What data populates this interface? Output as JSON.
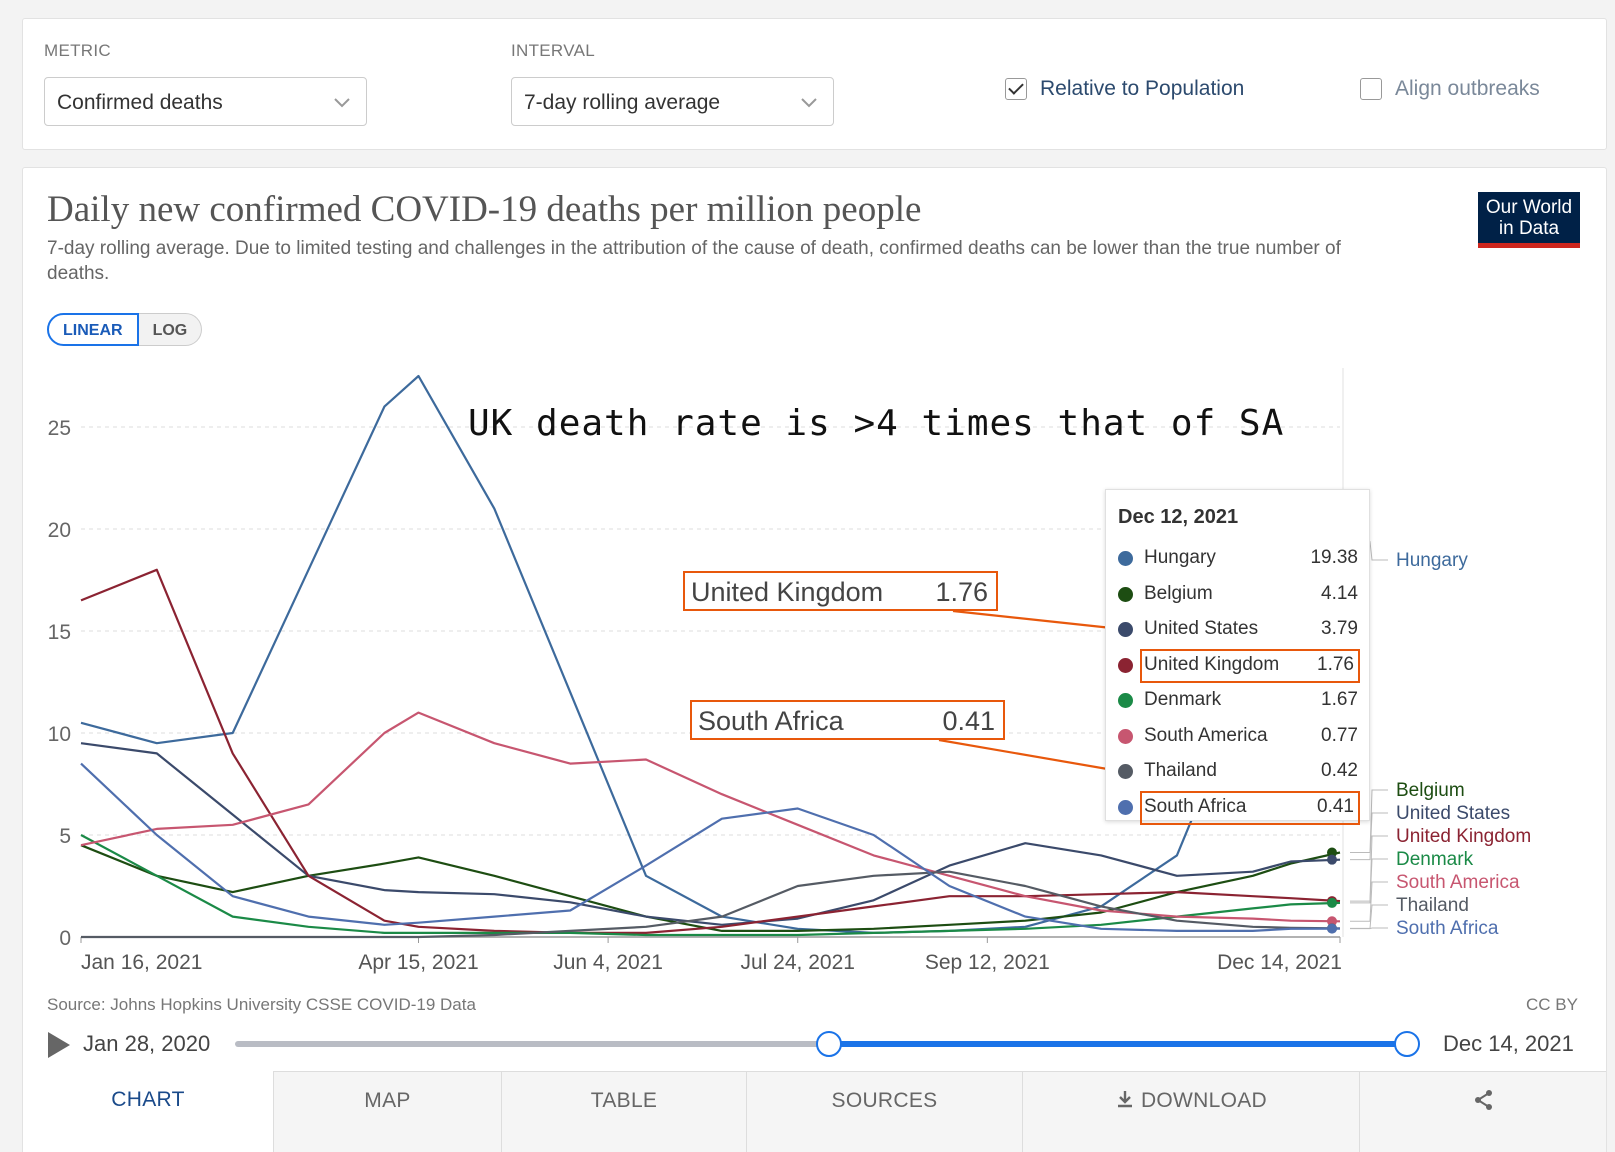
{
  "controls": {
    "metric_label": "METRIC",
    "metric_value": "Confirmed deaths",
    "interval_label": "INTERVAL",
    "interval_value": "7-day rolling average",
    "relative_label": "Relative to Population",
    "relative_checked": true,
    "align_label": "Align outbreaks",
    "align_checked": false
  },
  "header": {
    "title": "Daily new confirmed COVID-19 deaths per million people",
    "subtitle": "7-day rolling average. Due to limited testing and challenges in the attribution of the cause of death, confirmed deaths can be lower than the true number of deaths.",
    "logo_line1": "Our World",
    "logo_line2": "in Data"
  },
  "scale": {
    "linear": "LINEAR",
    "log": "LOG",
    "active": "linear"
  },
  "annotation": "UK death rate is >4 times that of SA",
  "chart_data": {
    "type": "line",
    "title": "Daily new confirmed COVID-19 deaths per million people",
    "xlabel": "",
    "ylabel": "",
    "ylim": [
      0,
      27
    ],
    "yticks": [
      0,
      5,
      10,
      15,
      20,
      25
    ],
    "xlim": [
      "2021-01-16",
      "2021-12-14"
    ],
    "xticks": [
      "Jan 16, 2021",
      "Apr 15, 2021",
      "Jun 4, 2021",
      "Jul 24, 2021",
      "Sep 12, 2021",
      "Dec 14, 2021"
    ],
    "grid": "horizontal-dashed",
    "x": [
      "2021-01-16",
      "2021-02-05",
      "2021-02-25",
      "2021-03-17",
      "2021-04-06",
      "2021-04-15",
      "2021-05-05",
      "2021-05-25",
      "2021-06-14",
      "2021-07-04",
      "2021-07-24",
      "2021-08-13",
      "2021-09-02",
      "2021-09-22",
      "2021-10-12",
      "2021-11-01",
      "2021-11-21",
      "2021-12-01",
      "2021-12-14"
    ],
    "series": [
      {
        "name": "Hungary",
        "color": "#3d6a9c",
        "values": [
          10.5,
          9.5,
          10.0,
          18.0,
          26.0,
          27.5,
          21.0,
          12.0,
          3.0,
          1.0,
          0.4,
          0.2,
          0.3,
          0.5,
          1.5,
          4.0,
          13.0,
          17.5,
          19.38
        ]
      },
      {
        "name": "Belgium",
        "color": "#1d4d12",
        "values": [
          4.5,
          3.0,
          2.2,
          3.0,
          3.6,
          3.9,
          3.0,
          2.0,
          1.0,
          0.3,
          0.3,
          0.4,
          0.6,
          0.8,
          1.2,
          2.2,
          3.0,
          3.6,
          4.14
        ]
      },
      {
        "name": "United States",
        "color": "#3b4a6b",
        "values": [
          9.5,
          9.0,
          6.0,
          3.0,
          2.3,
          2.2,
          2.1,
          1.7,
          1.0,
          0.6,
          0.9,
          1.8,
          3.5,
          4.6,
          4.0,
          3.0,
          3.2,
          3.7,
          3.79
        ]
      },
      {
        "name": "United Kingdom",
        "color": "#8b2332",
        "values": [
          16.5,
          18.0,
          9.0,
          3.0,
          0.8,
          0.5,
          0.3,
          0.2,
          0.2,
          0.5,
          1.0,
          1.5,
          2.0,
          2.0,
          2.1,
          2.2,
          2.0,
          1.9,
          1.76
        ]
      },
      {
        "name": "Denmark",
        "color": "#1b8a47",
        "values": [
          5.0,
          3.0,
          1.0,
          0.5,
          0.2,
          0.2,
          0.2,
          0.2,
          0.1,
          0.1,
          0.1,
          0.2,
          0.3,
          0.4,
          0.6,
          1.0,
          1.4,
          1.6,
          1.67
        ]
      },
      {
        "name": "South America",
        "color": "#c75670",
        "values": [
          4.5,
          5.3,
          5.5,
          6.5,
          10.0,
          11.0,
          9.5,
          8.5,
          8.7,
          7.0,
          5.5,
          4.0,
          3.0,
          2.0,
          1.3,
          1.0,
          0.9,
          0.8,
          0.77
        ]
      },
      {
        "name": "Thailand",
        "color": "#555b64",
        "values": [
          0.0,
          0.0,
          0.0,
          0.0,
          0.0,
          0.0,
          0.1,
          0.3,
          0.5,
          1.0,
          2.5,
          3.0,
          3.2,
          2.5,
          1.5,
          0.8,
          0.5,
          0.45,
          0.42
        ]
      },
      {
        "name": "South Africa",
        "color": "#4f6fae",
        "values": [
          8.5,
          5.0,
          2.0,
          1.0,
          0.6,
          0.7,
          1.0,
          1.3,
          3.5,
          5.8,
          6.3,
          5.0,
          2.5,
          1.0,
          0.4,
          0.3,
          0.3,
          0.4,
          0.41
        ]
      }
    ],
    "legend_placement": "right"
  },
  "tooltip": {
    "date": "Dec 12, 2021",
    "rows": [
      {
        "name": "Hungary",
        "value": "19.38",
        "color": "#3d6a9c"
      },
      {
        "name": "Belgium",
        "value": "4.14",
        "color": "#1d4d12"
      },
      {
        "name": "United States",
        "value": "3.79",
        "color": "#3b4a6b"
      },
      {
        "name": "United Kingdom",
        "value": "1.76",
        "color": "#8b2332"
      },
      {
        "name": "Denmark",
        "value": "1.67",
        "color": "#1b8a47"
      },
      {
        "name": "South America",
        "value": "0.77",
        "color": "#c75670"
      },
      {
        "name": "Thailand",
        "value": "0.42",
        "color": "#555b64"
      },
      {
        "name": "South Africa",
        "value": "0.41",
        "color": "#4f6fae"
      }
    ]
  },
  "callouts": {
    "uk_name": "United Kingdom",
    "uk_value": "1.76",
    "sa_name": "South Africa",
    "sa_value": "0.41",
    "highlight_color": "#e8580c"
  },
  "footer": {
    "source": "Source: Johns Hopkins University CSSE COVID-19 Data",
    "license": "CC BY"
  },
  "timeline": {
    "start_label": "Jan 28, 2020",
    "end_label": "Dec 14, 2021",
    "range_start_fraction": 0.507,
    "range_end_fraction": 1.0
  },
  "tabs": [
    {
      "label": "CHART",
      "active": true
    },
    {
      "label": "MAP",
      "active": false
    },
    {
      "label": "TABLE",
      "active": false
    },
    {
      "label": "SOURCES",
      "active": false
    },
    {
      "label": "DOWNLOAD",
      "active": false
    },
    {
      "label": "",
      "active": false
    }
  ]
}
